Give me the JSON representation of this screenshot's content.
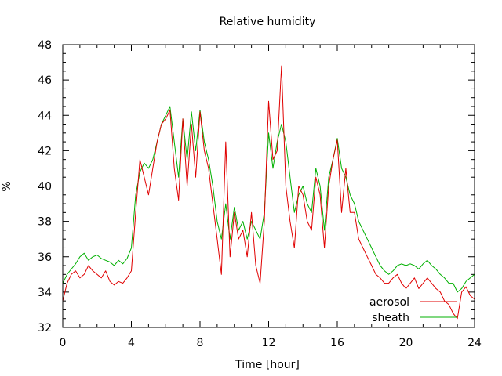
{
  "chart_data": {
    "type": "line",
    "title": "Relative humidity",
    "xlabel": "Time [hour]",
    "ylabel": "%",
    "xlim": [
      0,
      24
    ],
    "ylim": [
      32,
      48
    ],
    "xticks": [
      0,
      4,
      8,
      12,
      16,
      20,
      24
    ],
    "yticks": [
      32,
      34,
      36,
      38,
      40,
      42,
      44,
      46,
      48
    ],
    "grid": false,
    "legend_position": "bottom-right",
    "series": [
      {
        "name": "aerosol",
        "color": "#e00000",
        "x": [
          0,
          0.25,
          0.5,
          0.75,
          1,
          1.25,
          1.5,
          1.75,
          2,
          2.25,
          2.5,
          2.75,
          3,
          3.25,
          3.5,
          3.75,
          4,
          4.25,
          4.5,
          4.75,
          5,
          5.25,
          5.5,
          5.75,
          6,
          6.25,
          6.5,
          6.75,
          7,
          7.25,
          7.5,
          7.75,
          8,
          8.25,
          8.5,
          8.75,
          9,
          9.25,
          9.5,
          9.75,
          10,
          10.25,
          10.5,
          10.75,
          11,
          11.25,
          11.5,
          11.75,
          12,
          12.25,
          12.5,
          12.75,
          13,
          13.25,
          13.5,
          13.75,
          14,
          14.25,
          14.5,
          14.75,
          15,
          15.25,
          15.5,
          15.75,
          16,
          16.25,
          16.5,
          16.75,
          17,
          17.25,
          17.5,
          17.75,
          18,
          18.25,
          18.5,
          18.75,
          19,
          19.25,
          19.5,
          19.75,
          20,
          20.25,
          20.5,
          20.75,
          21,
          21.25,
          21.5,
          21.75,
          22,
          22.25,
          22.5,
          22.75,
          23,
          23.25,
          23.5,
          23.75,
          24
        ],
        "values": [
          33.5,
          34.5,
          35,
          35.2,
          34.8,
          35,
          35.5,
          35.2,
          35,
          34.8,
          35.2,
          34.6,
          34.4,
          34.6,
          34.5,
          34.8,
          35.2,
          38.5,
          41.5,
          40.5,
          39.5,
          41,
          42.5,
          43.5,
          43.8,
          44.3,
          41,
          39.2,
          43.8,
          40,
          43.5,
          40.5,
          44.2,
          42,
          41,
          39,
          37,
          35,
          42.5,
          36,
          38.5,
          37,
          37.5,
          36,
          38.5,
          35.5,
          34.5,
          38,
          44.8,
          41.5,
          42,
          46.8,
          40,
          38,
          36.5,
          40,
          39.5,
          38,
          37.5,
          40.5,
          39.5,
          36.5,
          40,
          41.5,
          42.6,
          38.5,
          41,
          38.5,
          38.5,
          37,
          36.5,
          36,
          35.5,
          35,
          34.8,
          34.5,
          34.5,
          34.8,
          35,
          34.5,
          34.2,
          34.5,
          34.8,
          34.2,
          34.5,
          34.8,
          34.5,
          34.2,
          34,
          33.5,
          33.3,
          32.8,
          32.5,
          34,
          34.3,
          33.8,
          33.6
        ],
        "legend_label": "aerosol"
      },
      {
        "name": "sheath",
        "color": "#00b000",
        "x": [
          0,
          0.25,
          0.5,
          0.75,
          1,
          1.25,
          1.5,
          1.75,
          2,
          2.25,
          2.5,
          2.75,
          3,
          3.25,
          3.5,
          3.75,
          4,
          4.25,
          4.5,
          4.75,
          5,
          5.25,
          5.5,
          5.75,
          6,
          6.25,
          6.5,
          6.75,
          7,
          7.25,
          7.5,
          7.75,
          8,
          8.25,
          8.5,
          8.75,
          9,
          9.25,
          9.5,
          9.75,
          10,
          10.25,
          10.5,
          10.75,
          11,
          11.25,
          11.5,
          11.75,
          12,
          12.25,
          12.5,
          12.75,
          13,
          13.25,
          13.5,
          13.75,
          14,
          14.25,
          14.5,
          14.75,
          15,
          15.25,
          15.5,
          15.75,
          16,
          16.25,
          16.5,
          16.75,
          17,
          17.25,
          17.5,
          17.75,
          18,
          18.25,
          18.5,
          18.75,
          19,
          19.25,
          19.5,
          19.75,
          20,
          20.25,
          20.5,
          20.75,
          21,
          21.25,
          21.5,
          21.75,
          22,
          22.25,
          22.5,
          22.75,
          23,
          23.25,
          23.5,
          23.75,
          24
        ],
        "values": [
          34.5,
          35,
          35.3,
          35.6,
          36,
          36.2,
          35.8,
          36,
          36.1,
          35.9,
          35.8,
          35.7,
          35.5,
          35.8,
          35.6,
          35.9,
          36.5,
          39.5,
          40.8,
          41.3,
          41,
          41.5,
          42.5,
          43.5,
          44,
          44.5,
          42.5,
          40.5,
          43.8,
          41.5,
          44.2,
          42,
          44.3,
          42.5,
          41.5,
          40,
          38,
          37,
          39,
          37,
          38.8,
          37.5,
          38,
          37,
          38,
          37.5,
          37,
          38.5,
          43,
          41,
          42.5,
          43.5,
          42.5,
          40.5,
          38.5,
          39.5,
          40,
          39,
          38.5,
          41,
          40,
          37.5,
          40.5,
          41.5,
          42.7,
          41,
          40.5,
          39.5,
          39,
          38,
          37.5,
          37,
          36.5,
          36,
          35.5,
          35.2,
          35,
          35.2,
          35.5,
          35.6,
          35.5,
          35.6,
          35.5,
          35.3,
          35.6,
          35.8,
          35.5,
          35.3,
          35,
          34.8,
          34.5,
          34.5,
          34,
          34.2,
          34.6,
          34.8,
          35
        ]
      }
    ]
  }
}
